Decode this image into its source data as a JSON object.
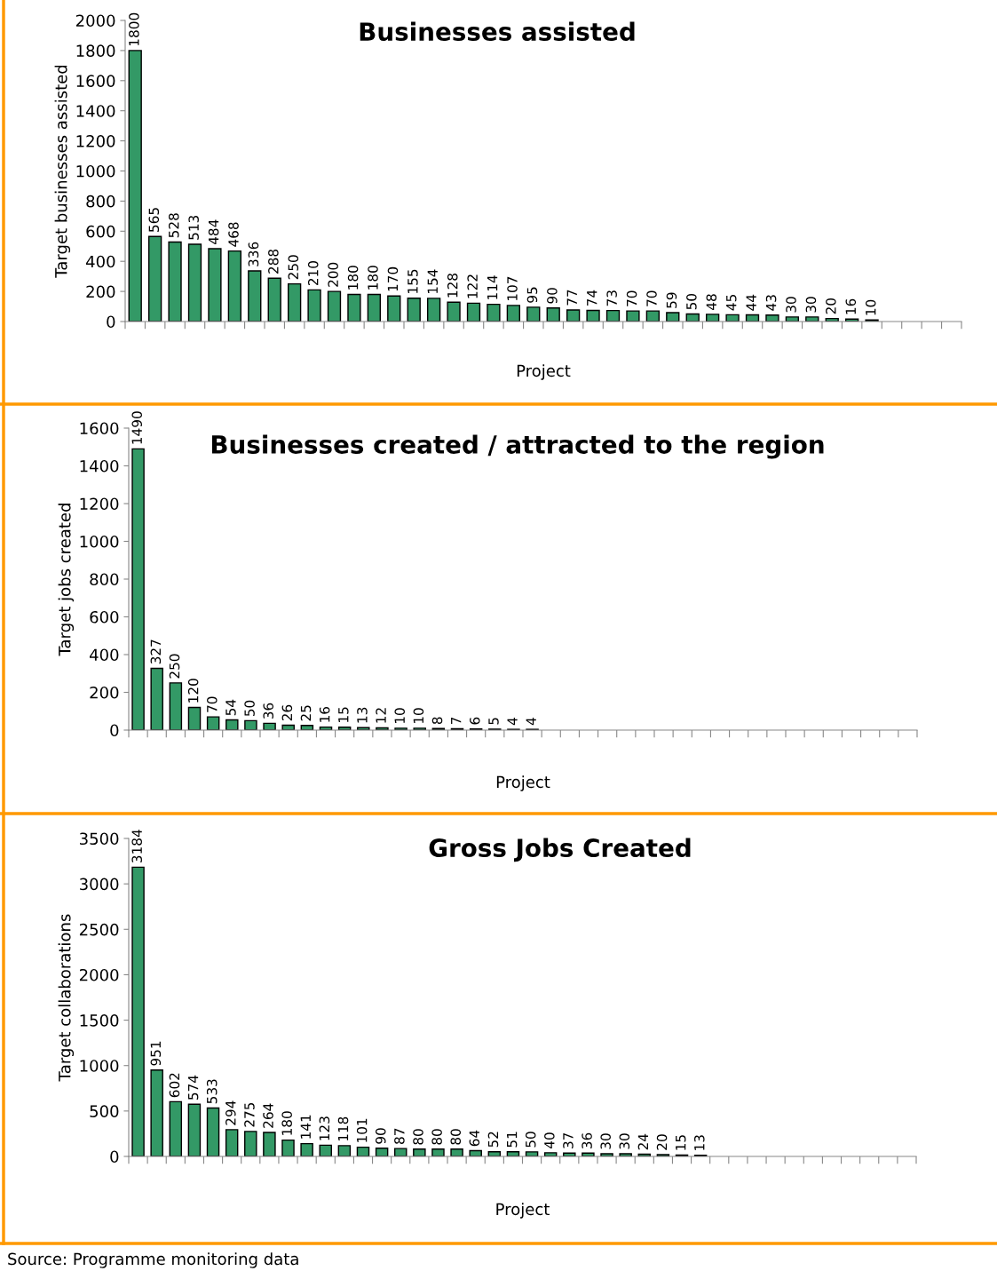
{
  "chart_data": [
    {
      "type": "bar",
      "title": "Businesses assisted",
      "xlabel": "Project",
      "ylabel": "Target businesses assisted",
      "color": "#339966",
      "categories": [
        null,
        null,
        null,
        null,
        null,
        null,
        null,
        null,
        null,
        null,
        null,
        null,
        null,
        null,
        null,
        null,
        null,
        null,
        null,
        null,
        null,
        null,
        null,
        null,
        null,
        null,
        null,
        null,
        null,
        null,
        null,
        null,
        null,
        null,
        null,
        null,
        null,
        null,
        null,
        null,
        null,
        null
      ],
      "values": [
        1800,
        565,
        528,
        513,
        484,
        468,
        336,
        288,
        250,
        210,
        200,
        180,
        180,
        170,
        155,
        154,
        128,
        122,
        114,
        107,
        95,
        90,
        77,
        74,
        73,
        70,
        70,
        59,
        50,
        48,
        45,
        44,
        43,
        30,
        30,
        20,
        16,
        10,
        null,
        null,
        null,
        null
      ],
      "ylim": [
        0,
        2000
      ],
      "yticks": [
        0,
        200,
        400,
        600,
        800,
        1000,
        1200,
        1400,
        1600,
        1800,
        2000
      ],
      "data_labels": true,
      "grid": false,
      "legend": false
    },
    {
      "type": "bar",
      "title": "Businesses created / attracted to the region",
      "xlabel": "Project",
      "ylabel": "Target jobs created",
      "color": "#339966",
      "categories": [
        null,
        null,
        null,
        null,
        null,
        null,
        null,
        null,
        null,
        null,
        null,
        null,
        null,
        null,
        null,
        null,
        null,
        null,
        null,
        null,
        null,
        null,
        null,
        null,
        null,
        null,
        null,
        null,
        null,
        null,
        null,
        null,
        null,
        null,
        null,
        null,
        null,
        null,
        null,
        null,
        null,
        null
      ],
      "values": [
        1490,
        327,
        250,
        120,
        70,
        54,
        50,
        36,
        26,
        25,
        16,
        15,
        13,
        12,
        10,
        10,
        8,
        7,
        6,
        5,
        4,
        4,
        null,
        null,
        null,
        null,
        null,
        null,
        null,
        null,
        null,
        null,
        null,
        null,
        null,
        null,
        null,
        null,
        null,
        null,
        null,
        null
      ],
      "ylim": [
        0,
        1600
      ],
      "yticks": [
        0,
        200,
        400,
        600,
        800,
        1000,
        1200,
        1400,
        1600
      ],
      "data_labels": true,
      "grid": false,
      "legend": false
    },
    {
      "type": "bar",
      "title": "Gross Jobs Created",
      "xlabel": "Project",
      "ylabel": "Target collaborations",
      "color": "#339966",
      "categories": [
        null,
        null,
        null,
        null,
        null,
        null,
        null,
        null,
        null,
        null,
        null,
        null,
        null,
        null,
        null,
        null,
        null,
        null,
        null,
        null,
        null,
        null,
        null,
        null,
        null,
        null,
        null,
        null,
        null,
        null,
        null,
        null,
        null,
        null,
        null,
        null,
        null,
        null,
        null,
        null,
        null,
        null
      ],
      "values": [
        3184,
        951,
        602,
        574,
        533,
        294,
        275,
        264,
        180,
        141,
        123,
        118,
        101,
        90,
        87,
        80,
        80,
        80,
        64,
        52,
        51,
        50,
        40,
        37,
        36,
        30,
        30,
        24,
        20,
        15,
        13,
        null,
        null,
        null,
        null,
        null,
        null,
        null,
        null,
        null,
        null,
        null
      ],
      "ylim": [
        0,
        3500
      ],
      "yticks": [
        0,
        500,
        1000,
        1500,
        2000,
        2500,
        3000,
        3500
      ],
      "data_labels": true,
      "grid": false,
      "legend": false,
      "annotations": [
        "Source: Programme monitoring data"
      ]
    }
  ]
}
